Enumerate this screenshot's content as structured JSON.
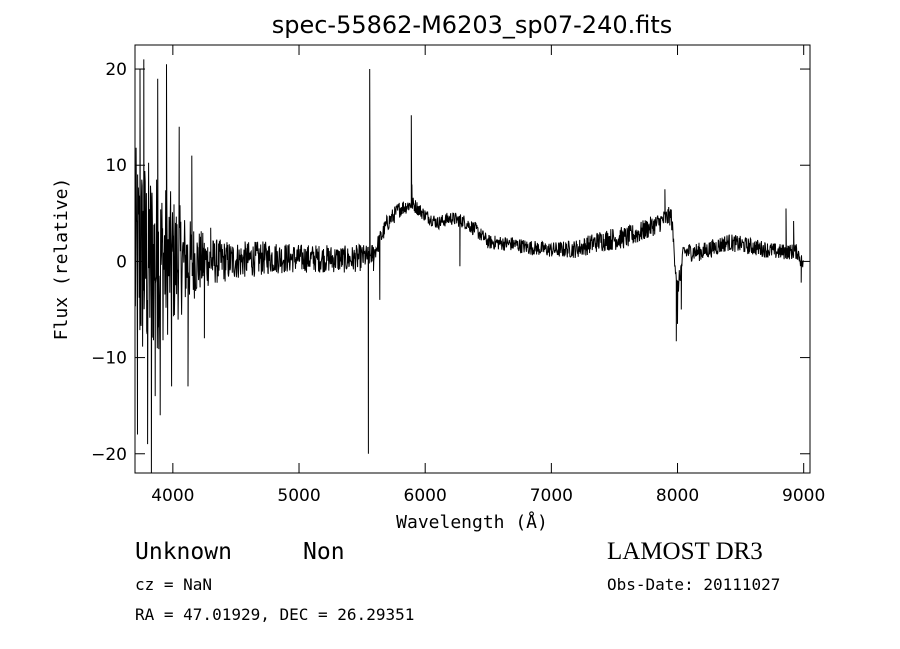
{
  "chart_data": {
    "type": "line",
    "title": "spec-55862-M6203_sp07-240.fits",
    "xlabel": "Wavelength (Å)",
    "ylabel": "Flux (relative)",
    "xlim": [
      3700,
      9050
    ],
    "ylim": [
      -22,
      22.5
    ],
    "xticks": [
      4000,
      5000,
      6000,
      7000,
      8000,
      9000
    ],
    "yticks": [
      -20,
      -10,
      0,
      10,
      20
    ],
    "xtick_labels": [
      "4000",
      "5000",
      "6000",
      "7000",
      "8000",
      "9000"
    ],
    "ytick_labels": [
      "-20",
      "-10",
      "0",
      "10",
      "20"
    ],
    "grid": false,
    "line_color": "#000000",
    "series": [
      {
        "anchors": [
          [
            3700,
            0
          ],
          [
            3800,
            0
          ],
          [
            4000,
            0
          ],
          [
            4200,
            0
          ],
          [
            4400,
            0
          ],
          [
            4600,
            0.2
          ],
          [
            4800,
            0.4
          ],
          [
            5000,
            0.3
          ],
          [
            5200,
            0.3
          ],
          [
            5400,
            0.2
          ],
          [
            5550,
            0.5
          ],
          [
            5600,
            1.0
          ],
          [
            5650,
            2.5
          ],
          [
            5700,
            4.0
          ],
          [
            5800,
            5.5
          ],
          [
            5900,
            6.0
          ],
          [
            6000,
            4.8
          ],
          [
            6100,
            4.0
          ],
          [
            6200,
            4.5
          ],
          [
            6300,
            4.2
          ],
          [
            6400,
            3.3
          ],
          [
            6500,
            2.0
          ],
          [
            6700,
            1.8
          ],
          [
            6800,
            1.5
          ],
          [
            7000,
            1.2
          ],
          [
            7200,
            1.3
          ],
          [
            7400,
            2.2
          ],
          [
            7600,
            2.5
          ],
          [
            7700,
            3.0
          ],
          [
            7850,
            4.0
          ],
          [
            7950,
            4.8
          ],
          [
            8000,
            -3.0
          ],
          [
            8050,
            1.0
          ],
          [
            8200,
            1.0
          ],
          [
            8400,
            2.0
          ],
          [
            8600,
            1.5
          ],
          [
            8800,
            1.0
          ],
          [
            8950,
            1.0
          ],
          [
            9000,
            -0.5
          ]
        ],
        "noise": [
          [
            3700,
            12
          ],
          [
            3800,
            11
          ],
          [
            3900,
            9
          ],
          [
            4000,
            7
          ],
          [
            4100,
            5
          ],
          [
            4200,
            3.5
          ],
          [
            4300,
            2.5
          ],
          [
            4500,
            2.0
          ],
          [
            5000,
            1.5
          ],
          [
            5500,
            1.4
          ],
          [
            5600,
            1.0
          ],
          [
            6000,
            0.7
          ],
          [
            7000,
            0.8
          ],
          [
            7500,
            1.2
          ],
          [
            8000,
            1.0
          ],
          [
            9000,
            0.8
          ]
        ],
        "spikes": [
          [
            3720,
            -18
          ],
          [
            3740,
            20
          ],
          [
            3770,
            21
          ],
          [
            3800,
            -19
          ],
          [
            3830,
            -22
          ],
          [
            3860,
            -14
          ],
          [
            3880,
            19
          ],
          [
            3900,
            -16
          ],
          [
            3950,
            20.5
          ],
          [
            3990,
            -13
          ],
          [
            4050,
            14
          ],
          [
            4120,
            -13
          ],
          [
            4150,
            11
          ],
          [
            4250,
            -8
          ],
          [
            4300,
            3.5
          ],
          [
            5550,
            -20
          ],
          [
            5560,
            20
          ],
          [
            5580,
            0
          ],
          [
            5590,
            -1
          ],
          [
            5640,
            -4
          ],
          [
            5890,
            15.2
          ],
          [
            5895,
            8
          ],
          [
            6275,
            -0.5
          ],
          [
            7900,
            7.5
          ],
          [
            7990,
            -8.3
          ],
          [
            8000,
            -6.5
          ],
          [
            8030,
            -5
          ],
          [
            8860,
            5.5
          ],
          [
            8920,
            4.2
          ],
          [
            8980,
            -2.2
          ]
        ]
      }
    ]
  },
  "annotations": {
    "object_class": "Unknown",
    "object_subclass": "Non",
    "survey": "LAMOST DR3",
    "redshift": "cz = NaN",
    "obs_date": "Obs-Date: 20111027",
    "coordinates": "RA =  47.01929, DEC =  26.29351"
  }
}
